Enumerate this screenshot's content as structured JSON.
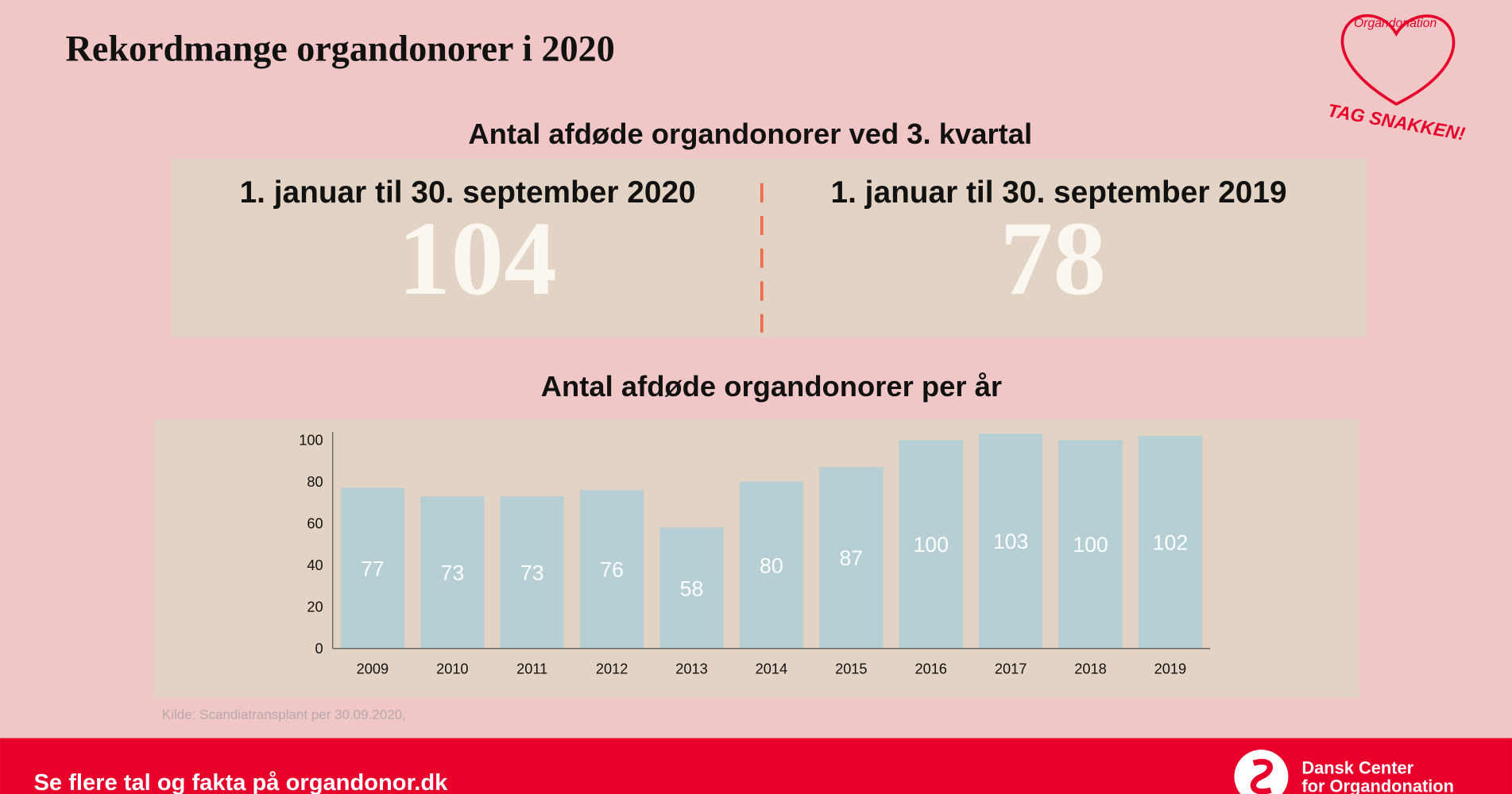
{
  "title": "Rekordmange organdonorer i 2020",
  "logo": {
    "caption": "Organdonation",
    "slogan": "TAG SNAKKEN!"
  },
  "summary": {
    "title": "Antal afdøde organdonorer ved 3. kvartal",
    "left": {
      "label": "1. januar til 30. september 2020",
      "value": 104
    },
    "right": {
      "label": "1. januar til 30. september 2019",
      "value": 78
    }
  },
  "chart_data": {
    "type": "bar",
    "title": "Antal afdøde organdonorer per år",
    "categories": [
      "2009",
      "2010",
      "2011",
      "2012",
      "2013",
      "2014",
      "2015",
      "2016",
      "2017",
      "2018",
      "2019"
    ],
    "values": [
      77,
      73,
      73,
      76,
      58,
      80,
      87,
      100,
      103,
      100,
      102
    ],
    "color": "#b5cfd4",
    "label_color": "#ffffff",
    "ylim": [
      0,
      104
    ],
    "yticks": [
      0,
      20,
      40,
      60,
      80,
      100
    ],
    "grid": false
  },
  "source": "Kilde: Scandiatransplant per 30.09.2020,",
  "footer": {
    "text": "Se flere tal og fakta på organdonor.dk",
    "org_line1": "Dansk Center",
    "org_line2": "for Organdonation"
  }
}
